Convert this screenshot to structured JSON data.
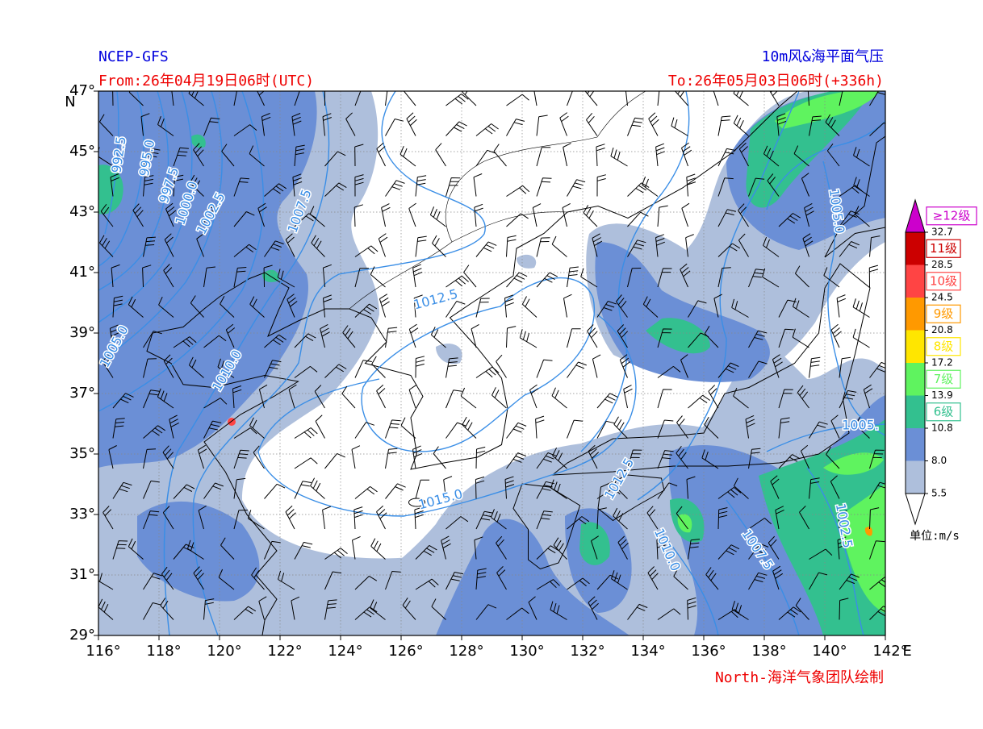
{
  "header": {
    "source": "NCEP-GFS",
    "from": "From:26年04月19日06时(UTC)",
    "title": "10m风&海平面气压",
    "to": "To:26年05月03日06时(+336h)"
  },
  "map": {
    "xlim": [
      116,
      142
    ],
    "ylim": [
      29,
      47
    ],
    "xticks": [
      {
        "value": 116,
        "label": "116°"
      },
      {
        "value": 118,
        "label": "118°"
      },
      {
        "value": 120,
        "label": "120°"
      },
      {
        "value": 122,
        "label": "122°"
      },
      {
        "value": 124,
        "label": "124°"
      },
      {
        "value": 126,
        "label": "126°"
      },
      {
        "value": 128,
        "label": "128°"
      },
      {
        "value": 130,
        "label": "130°"
      },
      {
        "value": 132,
        "label": "132°"
      },
      {
        "value": 134,
        "label": "134°"
      },
      {
        "value": 136,
        "label": "136°"
      },
      {
        "value": 138,
        "label": "138°"
      },
      {
        "value": 140,
        "label": "140°"
      },
      {
        "value": 142,
        "label": "142°"
      }
    ],
    "yticks": [
      {
        "value": 29,
        "label": "29°"
      },
      {
        "value": 31,
        "label": "31°"
      },
      {
        "value": 33,
        "label": "33°"
      },
      {
        "value": 35,
        "label": "35°"
      },
      {
        "value": 37,
        "label": "37°"
      },
      {
        "value": 39,
        "label": "39°"
      },
      {
        "value": 41,
        "label": "41°"
      },
      {
        "value": 43,
        "label": "43°"
      },
      {
        "value": 45,
        "label": "45°"
      },
      {
        "value": 47,
        "label": "47°"
      }
    ],
    "x_unit": "E",
    "y_unit": "N",
    "grid": true
  },
  "isobar_labels": [
    "992.5",
    "995.0",
    "997.5",
    "1000.0",
    "1002.5",
    "1007.5",
    "1012.5",
    "1005.0",
    "1010.0",
    "1015.0",
    "1012.5",
    "1010.0",
    "1007.5",
    "1002.5",
    "1005.0",
    "1005."
  ],
  "legend": {
    "levels": [
      5.5,
      {
        "value": 8,
        "label": "8.0"
      },
      10.8,
      13.9,
      17.2,
      20.8,
      24.5,
      28.5,
      32.7
    ],
    "colors": [
      "#aebfdc",
      "#6b8fd6",
      "#33c08f",
      "#5ff35f",
      "#ffe600",
      "#ff9900",
      "#ff4444",
      "#cc0000",
      "#cc00cc"
    ],
    "classes": [
      "6级",
      "7级",
      "8级",
      "9级",
      "10级",
      "11级",
      "≥12级"
    ],
    "unit": "单位:m/s"
  },
  "credit": "North-海洋气象团队绘制"
}
